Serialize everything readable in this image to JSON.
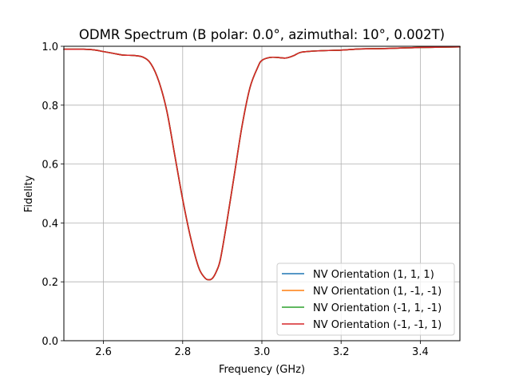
{
  "chart_data": {
    "type": "line",
    "title": "ODMR Spectrum (B polar: 0.0°, azimuthal: 10°, 0.002T)",
    "xlabel": "Frequency (GHz)",
    "ylabel": "Fidelity",
    "xlim": [
      2.5,
      3.5
    ],
    "ylim": [
      0.0,
      1.0
    ],
    "xticks": [
      2.6,
      2.8,
      3.0,
      3.2,
      3.4
    ],
    "xtick_labels": [
      "2.6",
      "2.8",
      "3.0",
      "3.2",
      "3.4"
    ],
    "yticks": [
      0.0,
      0.2,
      0.4,
      0.6,
      0.8,
      1.0
    ],
    "ytick_labels": [
      "0.0",
      "0.2",
      "0.4",
      "0.6",
      "0.8",
      "1.0"
    ],
    "grid": true,
    "legend_position": "lower right",
    "x": [
      2.5,
      2.55,
      2.575,
      2.6,
      2.625,
      2.65,
      2.675,
      2.7,
      2.72,
      2.74,
      2.76,
      2.78,
      2.8,
      2.82,
      2.84,
      2.855,
      2.865,
      2.875,
      2.885,
      2.895,
      2.91,
      2.93,
      2.95,
      2.97,
      2.99,
      3.0,
      3.02,
      3.04,
      3.06,
      3.08,
      3.1,
      3.15,
      3.2,
      3.25,
      3.3,
      3.35,
      3.4,
      3.45,
      3.5
    ],
    "series": [
      {
        "name": "NV Orientation (1, 1, 1)",
        "color": "#1f77b4",
        "y": [
          0.99,
          0.99,
          0.988,
          0.982,
          0.976,
          0.97,
          0.969,
          0.963,
          0.94,
          0.88,
          0.78,
          0.63,
          0.48,
          0.35,
          0.25,
          0.215,
          0.207,
          0.212,
          0.235,
          0.275,
          0.39,
          0.56,
          0.73,
          0.86,
          0.93,
          0.952,
          0.962,
          0.962,
          0.96,
          0.968,
          0.98,
          0.985,
          0.987,
          0.991,
          0.992,
          0.994,
          0.996,
          0.997,
          0.998
        ]
      },
      {
        "name": "NV Orientation (1, -1, -1)",
        "color": "#ff7f0e",
        "y": [
          0.99,
          0.99,
          0.988,
          0.982,
          0.976,
          0.97,
          0.969,
          0.963,
          0.94,
          0.88,
          0.78,
          0.63,
          0.48,
          0.35,
          0.25,
          0.215,
          0.207,
          0.212,
          0.235,
          0.275,
          0.39,
          0.56,
          0.73,
          0.86,
          0.93,
          0.952,
          0.962,
          0.962,
          0.96,
          0.968,
          0.98,
          0.985,
          0.987,
          0.991,
          0.992,
          0.994,
          0.996,
          0.997,
          0.998
        ]
      },
      {
        "name": "NV Orientation (-1, 1, -1)",
        "color": "#2ca02c",
        "y": [
          0.99,
          0.99,
          0.988,
          0.982,
          0.976,
          0.97,
          0.969,
          0.963,
          0.94,
          0.88,
          0.78,
          0.63,
          0.48,
          0.35,
          0.25,
          0.215,
          0.207,
          0.212,
          0.235,
          0.275,
          0.39,
          0.56,
          0.73,
          0.86,
          0.93,
          0.952,
          0.962,
          0.962,
          0.96,
          0.968,
          0.98,
          0.985,
          0.987,
          0.991,
          0.992,
          0.994,
          0.996,
          0.997,
          0.998
        ]
      },
      {
        "name": "NV Orientation (-1, -1, 1)",
        "color": "#d62728",
        "y": [
          0.99,
          0.99,
          0.988,
          0.982,
          0.976,
          0.97,
          0.969,
          0.963,
          0.94,
          0.88,
          0.78,
          0.63,
          0.48,
          0.35,
          0.25,
          0.215,
          0.207,
          0.212,
          0.235,
          0.275,
          0.39,
          0.56,
          0.73,
          0.86,
          0.93,
          0.952,
          0.962,
          0.962,
          0.96,
          0.968,
          0.98,
          0.985,
          0.987,
          0.991,
          0.992,
          0.994,
          0.996,
          0.997,
          0.998
        ]
      }
    ]
  }
}
